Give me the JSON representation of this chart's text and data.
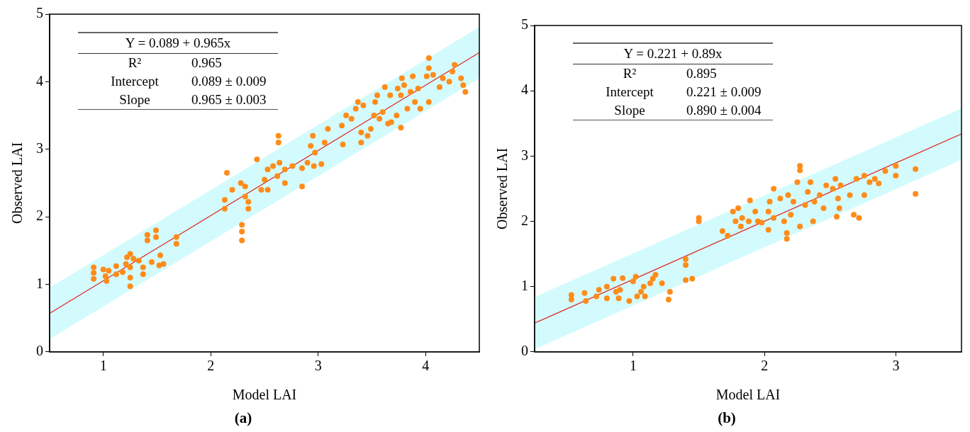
{
  "chart_data": [
    {
      "type": "scatter",
      "title": "(a)",
      "xlabel": "Model LAI",
      "ylabel": "Observed LAI",
      "xlim": [
        0.5,
        4.5
      ],
      "xticks": [
        1,
        2,
        3,
        4
      ],
      "ylim": [
        0,
        5
      ],
      "yticks": [
        0,
        1,
        2,
        3,
        4,
        5
      ],
      "grid": false,
      "legend": false,
      "marker": "circle",
      "annotations": [
        "Y = 0.089 + 0.965x",
        "R²",
        "0.965",
        "Intercept",
        "0.089 ± 0.009",
        "Slope",
        "0.965 ± 0.003"
      ],
      "series": [
        {
          "color": "#ff8c1a",
          "x": [
            0.91,
            0.91,
            0.91,
            1.0,
            1.02,
            1.03,
            1.05,
            1.12,
            1.12,
            1.18,
            1.21,
            1.22,
            1.25,
            1.25,
            1.25,
            1.25,
            1.28,
            1.33,
            1.37,
            1.37,
            1.41,
            1.41,
            1.45,
            1.49,
            1.49,
            1.52,
            1.53,
            1.56,
            1.68,
            1.68,
            2.13,
            2.13,
            2.15,
            2.2,
            2.28,
            2.29,
            2.29,
            2.29,
            2.32,
            2.32,
            2.35,
            2.35,
            2.43,
            2.47,
            2.5,
            2.53,
            2.53,
            2.58,
            2.62,
            2.64,
            2.63,
            2.63,
            2.69,
            2.69,
            2.76,
            2.85,
            2.85,
            2.9,
            2.93,
            2.95,
            2.97,
            2.96,
            3.03,
            3.06,
            3.09,
            3.22,
            3.23,
            3.26,
            3.31,
            3.35,
            3.37,
            3.4,
            3.4,
            3.42,
            3.46,
            3.49,
            3.52,
            3.53,
            3.55,
            3.57,
            3.6,
            3.62,
            3.65,
            3.68,
            3.67,
            3.73,
            3.74,
            3.77,
            3.77,
            3.78,
            3.8,
            3.83,
            3.86,
            3.88,
            3.9,
            3.93,
            3.95,
            4.01,
            4.03,
            4.03,
            4.03,
            4.07,
            4.13,
            4.16,
            4.22,
            4.25,
            4.27,
            4.33,
            4.35,
            4.37
          ],
          "values": [
            1.08,
            1.17,
            1.25,
            1.22,
            1.12,
            1.05,
            1.2,
            1.15,
            1.27,
            1.18,
            1.3,
            1.4,
            0.97,
            1.1,
            1.25,
            1.45,
            1.38,
            1.35,
            1.15,
            1.25,
            1.65,
            1.73,
            1.33,
            1.7,
            1.8,
            1.28,
            1.43,
            1.3,
            1.6,
            1.7,
            2.12,
            2.25,
            2.65,
            2.4,
            2.5,
            1.65,
            1.78,
            1.88,
            2.3,
            2.45,
            2.12,
            2.22,
            2.85,
            2.4,
            2.55,
            2.7,
            2.4,
            2.75,
            2.6,
            2.8,
            3.1,
            3.2,
            2.5,
            2.7,
            2.75,
            2.45,
            2.72,
            2.8,
            3.05,
            3.2,
            2.95,
            2.75,
            2.78,
            3.1,
            3.3,
            3.35,
            3.07,
            3.5,
            3.45,
            3.6,
            3.7,
            3.1,
            3.25,
            3.65,
            3.2,
            3.3,
            3.5,
            3.7,
            3.8,
            3.45,
            3.55,
            3.92,
            3.38,
            3.4,
            3.8,
            3.5,
            3.9,
            3.32,
            3.8,
            4.05,
            3.95,
            3.6,
            3.85,
            4.08,
            3.7,
            3.9,
            3.6,
            4.08,
            4.2,
            4.35,
            3.7,
            4.1,
            3.92,
            4.05,
            4.0,
            4.15,
            4.25,
            4.05,
            3.95,
            3.85
          ]
        },
        {
          "type": "line",
          "marker": "none",
          "color": "#e0302a",
          "x": [
            0.5,
            4.5
          ],
          "values": [
            0.57,
            4.43
          ],
          "lower": [
            0.19,
            4.05
          ],
          "upper": [
            0.95,
            4.81
          ]
        }
      ]
    },
    {
      "type": "scatter",
      "title": "(b)",
      "xlabel": "Model LAI",
      "ylabel": "Observed LAI",
      "xlim": [
        0.25,
        3.5
      ],
      "xticks": [
        1,
        2,
        3
      ],
      "ylim": [
        0,
        5
      ],
      "yticks": [
        0,
        1,
        2,
        3,
        4,
        5
      ],
      "grid": false,
      "legend": false,
      "marker": "circle",
      "annotations": [
        "Y = 0.221 + 0.89x",
        "R²",
        "0.895",
        "Intercept",
        "0.221 ± 0.009",
        "Slope",
        "0.890 ± 0.004"
      ],
      "series": [
        {
          "color": "#ff8c1a",
          "x": [
            0.53,
            0.53,
            0.63,
            0.64,
            0.72,
            0.74,
            0.8,
            0.8,
            0.85,
            0.87,
            0.89,
            0.9,
            0.92,
            0.97,
            1.0,
            1.02,
            1.03,
            1.06,
            1.08,
            1.09,
            1.13,
            1.15,
            1.17,
            1.22,
            1.27,
            1.28,
            1.4,
            1.4,
            1.4,
            1.45,
            1.5,
            1.5,
            1.68,
            1.72,
            1.76,
            1.78,
            1.8,
            1.82,
            1.83,
            1.89,
            1.88,
            1.93,
            1.95,
            1.98,
            2.03,
            2.03,
            2.04,
            2.07,
            2.07,
            2.12,
            2.15,
            2.18,
            2.2,
            2.22,
            2.17,
            2.17,
            2.27,
            2.27,
            2.27,
            2.25,
            2.31,
            2.33,
            2.35,
            2.37,
            2.38,
            2.42,
            2.45,
            2.47,
            2.52,
            2.54,
            2.56,
            2.58,
            2.55,
            2.57,
            2.65,
            2.68,
            2.72,
            2.7,
            2.76,
            2.76,
            2.8,
            2.84,
            2.87,
            2.92,
            3.0,
            3.0,
            3.15,
            3.15
          ],
          "values": [
            0.8,
            0.87,
            0.9,
            0.78,
            0.85,
            0.95,
            0.82,
            1.0,
            1.12,
            0.92,
            0.82,
            0.95,
            1.13,
            0.78,
            1.08,
            1.15,
            0.85,
            0.92,
            1.0,
            0.85,
            1.05,
            1.12,
            1.18,
            1.05,
            0.8,
            0.92,
            1.42,
            1.33,
            1.1,
            1.12,
            2.0,
            2.05,
            1.85,
            1.78,
            2.15,
            2.0,
            2.2,
            1.92,
            2.05,
            2.32,
            2.0,
            2.15,
            2.0,
            1.98,
            1.87,
            2.15,
            2.3,
            2.5,
            2.05,
            2.35,
            2.0,
            2.4,
            2.1,
            2.3,
            1.73,
            1.82,
            2.78,
            2.85,
            1.92,
            2.6,
            2.25,
            2.45,
            2.6,
            2.0,
            2.3,
            2.4,
            2.2,
            2.55,
            2.5,
            2.65,
            2.35,
            2.55,
            2.07,
            2.2,
            2.4,
            2.1,
            2.05,
            2.65,
            2.4,
            2.7,
            2.6,
            2.65,
            2.58,
            2.77,
            2.7,
            2.85,
            2.8,
            2.42
          ]
        },
        {
          "type": "line",
          "marker": "none",
          "color": "#e0302a",
          "x": [
            0.25,
            3.5
          ],
          "values": [
            0.44,
            3.34
          ],
          "lower": [
            0.04,
            2.94
          ],
          "upper": [
            0.84,
            3.73
          ]
        }
      ]
    }
  ]
}
